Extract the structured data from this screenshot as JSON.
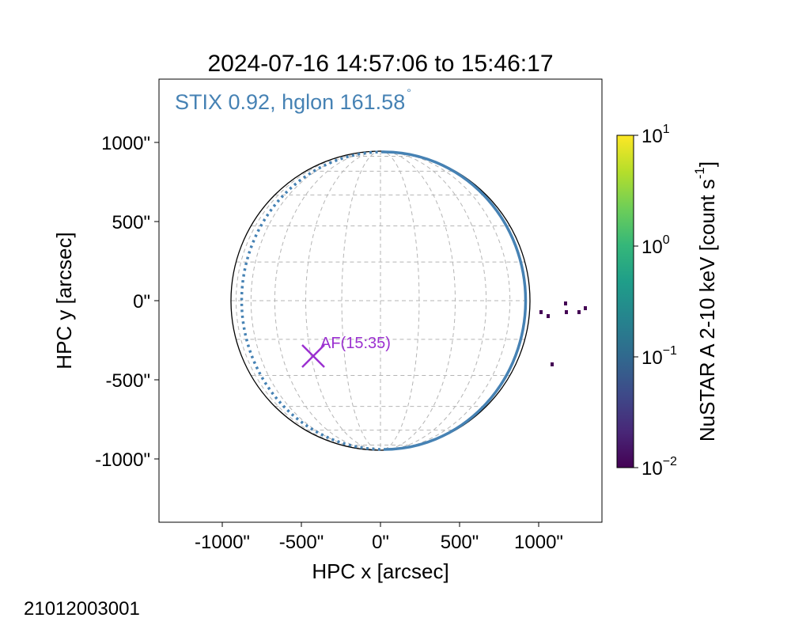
{
  "chart_data": {
    "type": "heatmap",
    "title": "2024-07-16 14:57:06 to 15:46:17",
    "xlabel": "HPC x [arcsec]",
    "ylabel": "HPC y [arcsec]",
    "xlim": [
      -1400,
      1400
    ],
    "ylim": [
      -1400,
      1400
    ],
    "x_ticks": [
      -1000,
      -500,
      0,
      500,
      1000
    ],
    "y_ticks": [
      1000,
      500,
      0,
      -500,
      -1000
    ],
    "x_tick_labels": [
      "-1000\"",
      "-500\"",
      "0\"",
      "500\"",
      "1000\""
    ],
    "y_tick_labels": [
      "1000\"",
      "500\"",
      "0\"",
      "-500\"",
      "-1000\""
    ],
    "solar_radius_arcsec": 945,
    "grid": true,
    "stix_limb": {
      "label": "STIX 0.92, hglon 161.58",
      "degree_symbol": "°",
      "color": "#4682b4",
      "observer_hglon_deg": 161.58
    },
    "annotation": {
      "label": "AF(15:35)",
      "x": -425,
      "y": -350,
      "marker": "x",
      "color": "#9b30d0"
    },
    "emission_pixels": [
      {
        "x": 1015,
        "y": -75,
        "value": 0.01
      },
      {
        "x": 1060,
        "y": -100,
        "value": 0.01
      },
      {
        "x": 1170,
        "y": -20,
        "value": 0.01
      },
      {
        "x": 1175,
        "y": -75,
        "value": 0.01
      },
      {
        "x": 1255,
        "y": -75,
        "value": 0.01
      },
      {
        "x": 1295,
        "y": -50,
        "value": 0.01
      },
      {
        "x": 1085,
        "y": -405,
        "value": 0.01
      }
    ],
    "colorbar": {
      "label": "NuSTAR A 2-10 keV [count s",
      "label_exponent": "-1",
      "label_end": "]",
      "colormap": "viridis",
      "scale": "log",
      "range": [
        0.01,
        10
      ],
      "ticks": [
        {
          "value": 10,
          "base": "10",
          "exp": "1"
        },
        {
          "value": 1,
          "base": "10",
          "exp": "0"
        },
        {
          "value": 0.1,
          "base": "10",
          "exp": "−1"
        },
        {
          "value": 0.01,
          "base": "10",
          "exp": "−2"
        }
      ]
    },
    "footer_id": "21012003001"
  },
  "colors": {
    "grid": "#b5b5b5",
    "limb": "#000000",
    "stix": "#4682b4",
    "pixel": "#440154"
  }
}
